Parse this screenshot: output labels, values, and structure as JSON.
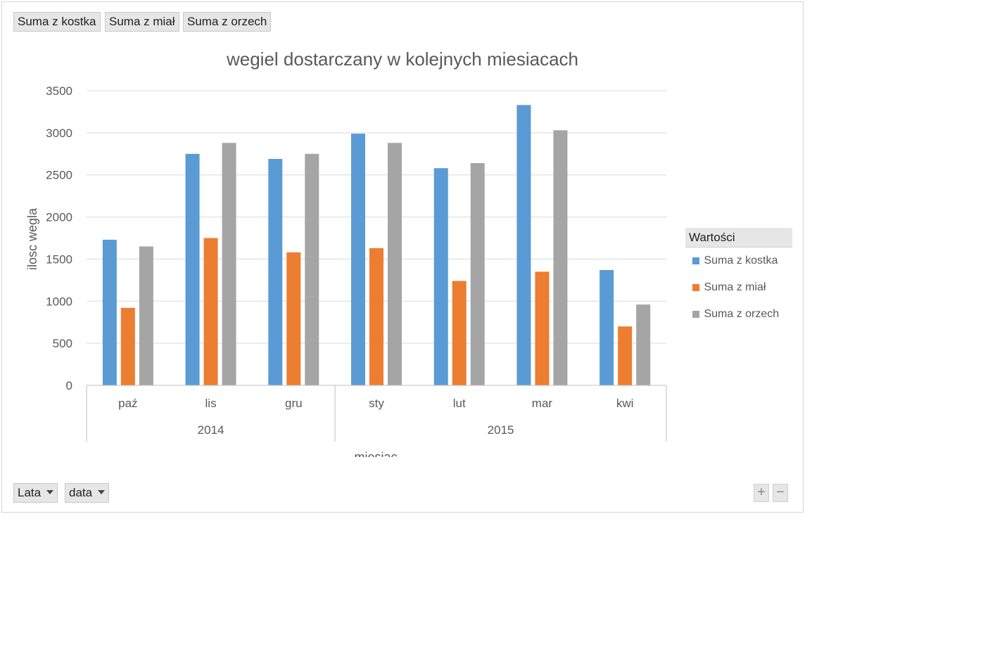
{
  "value_buttons": [
    "Suma z kostka",
    "Suma z miał",
    "Suma z orzech"
  ],
  "axis_buttons": [
    "Lata",
    "data"
  ],
  "zoom": {
    "plus": "+",
    "minus": "−"
  },
  "legend": {
    "title": "Wartości",
    "entries": [
      "Suma z kostka",
      "Suma z miał",
      "Suma z orzech"
    ]
  },
  "chart_data": {
    "type": "bar",
    "title": "wegiel dostarczany w kolejnych miesiacach",
    "xlabel": "miesiac",
    "ylabel": "ilosc wegla",
    "ylim": [
      0,
      3500
    ],
    "yticks": [
      0,
      500,
      1000,
      1500,
      2000,
      2500,
      3000,
      3500
    ],
    "grid": true,
    "legend_position": "right",
    "categories": [
      "paź",
      "lis",
      "gru",
      "sty",
      "lut",
      "mar",
      "kwi"
    ],
    "groups": [
      {
        "label": "2014",
        "categories": [
          "paź",
          "lis",
          "gru"
        ]
      },
      {
        "label": "2015",
        "categories": [
          "sty",
          "lut",
          "mar",
          "kwi"
        ]
      }
    ],
    "series": [
      {
        "name": "Suma z kostka",
        "color": "#5b9bd5",
        "values": [
          1730,
          2750,
          2690,
          2990,
          2580,
          3330,
          1370
        ]
      },
      {
        "name": "Suma z miał",
        "color": "#ed7d31",
        "values": [
          920,
          1750,
          1580,
          1630,
          1240,
          1350,
          700
        ]
      },
      {
        "name": "Suma z orzech",
        "color": "#a5a5a5",
        "values": [
          1650,
          2880,
          2750,
          2880,
          2640,
          3030,
          960
        ]
      }
    ]
  }
}
